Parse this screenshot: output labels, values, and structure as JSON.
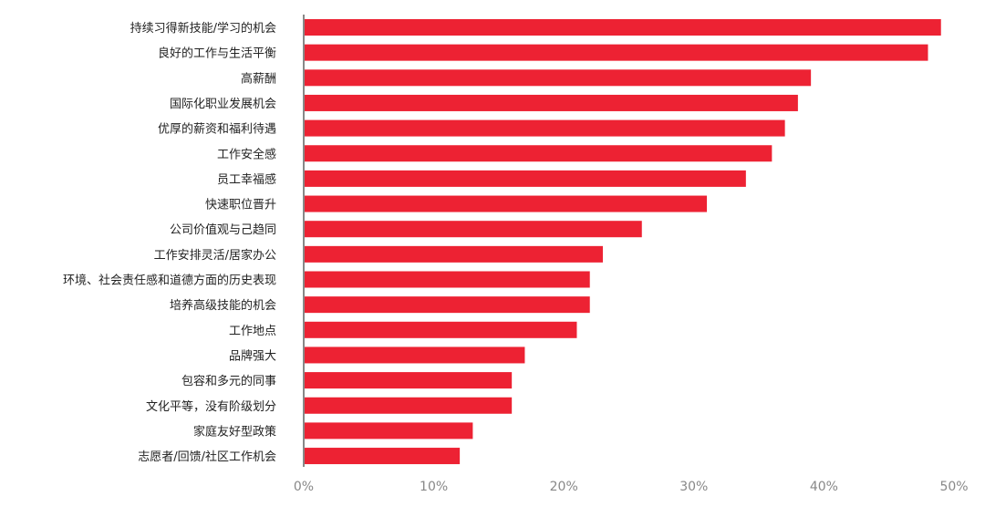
{
  "chart_data": {
    "type": "bar",
    "orientation": "horizontal",
    "categories": [
      "持续习得新技能/学习的机会",
      "良好的工作与生活平衡",
      "高薪酬",
      "国际化职业发展机会",
      "优厚的薪资和福利待遇",
      "工作安全感",
      "员工幸福感",
      "快速职位晋升",
      "公司价值观与己趋同",
      "工作安排灵活/居家办公",
      "环境、社会责任感和道德方面的历史表现",
      "培养高级技能的机会",
      "工作地点",
      "品牌强大",
      "包容和多元的同事",
      "文化平等，没有阶级划分",
      "家庭友好型政策",
      "志愿者/回馈/社区工作机会"
    ],
    "values": [
      49,
      48,
      39,
      38,
      37,
      36,
      34,
      31,
      26,
      23,
      22,
      22,
      21,
      17,
      16,
      16,
      13,
      12
    ],
    "unit": "%",
    "xlim": [
      0,
      50
    ],
    "xticks": [
      "0%",
      "10%",
      "20%",
      "30%",
      "40%",
      "50%"
    ],
    "grid": false,
    "bar_color": "#ed2233"
  }
}
